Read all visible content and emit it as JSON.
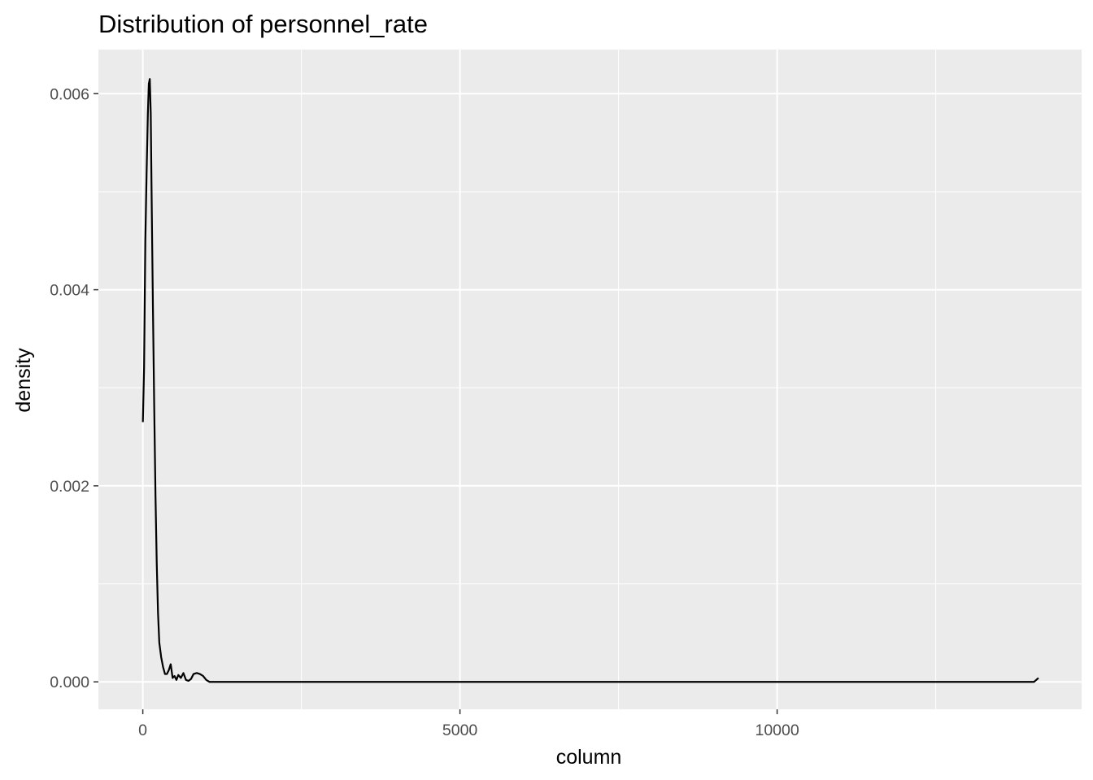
{
  "chart_data": {
    "type": "line",
    "title": "Distribution of personnel_rate",
    "xlabel": "column",
    "ylabel": "density",
    "xlim": [
      -700,
      14800
    ],
    "ylim": [
      -0.00028,
      0.00645
    ],
    "x_ticks": [
      0,
      5000,
      10000
    ],
    "x_tick_labels": [
      "0",
      "5000",
      "10000"
    ],
    "x_minor_ticks": [
      2500,
      7500,
      12500
    ],
    "y_ticks": [
      0.0,
      0.002,
      0.004,
      0.006
    ],
    "y_tick_labels": [
      "0.000",
      "0.002",
      "0.004",
      "0.006"
    ],
    "y_minor_ticks": [
      0.001,
      0.003,
      0.005
    ],
    "grid": true,
    "series": [
      {
        "values": [
          [
            1,
            0.00265
          ],
          [
            20,
            0.0032
          ],
          [
            40,
            0.0045
          ],
          [
            60,
            0.0052
          ],
          [
            80,
            0.0058
          ],
          [
            95,
            0.0061
          ],
          [
            110,
            0.00615
          ],
          [
            125,
            0.0058
          ],
          [
            140,
            0.0049
          ],
          [
            160,
            0.0038
          ],
          [
            180,
            0.0028
          ],
          [
            200,
            0.0019
          ],
          [
            220,
            0.0012
          ],
          [
            240,
            0.0007
          ],
          [
            260,
            0.0004
          ],
          [
            290,
            0.00025
          ],
          [
            320,
            0.00015
          ],
          [
            350,
            8e-05
          ],
          [
            380,
            8e-05
          ],
          [
            410,
            0.00012
          ],
          [
            440,
            0.00018
          ],
          [
            470,
            4e-05
          ],
          [
            500,
            6e-05
          ],
          [
            530,
            2e-05
          ],
          [
            560,
            7e-05
          ],
          [
            600,
            4e-05
          ],
          [
            640,
            9e-05
          ],
          [
            680,
            2e-05
          ],
          [
            720,
            1e-05
          ],
          [
            760,
            3e-05
          ],
          [
            800,
            8e-05
          ],
          [
            850,
            9e-05
          ],
          [
            900,
            8e-05
          ],
          [
            950,
            6e-05
          ],
          [
            1000,
            2e-05
          ],
          [
            1050,
            0.0
          ],
          [
            2000,
            0.0
          ],
          [
            5000,
            0.0
          ],
          [
            8000,
            0.0
          ],
          [
            11000,
            0.0
          ],
          [
            13500,
            0.0
          ],
          [
            14050,
            0.0
          ],
          [
            14120,
            4e-05
          ]
        ]
      }
    ]
  }
}
